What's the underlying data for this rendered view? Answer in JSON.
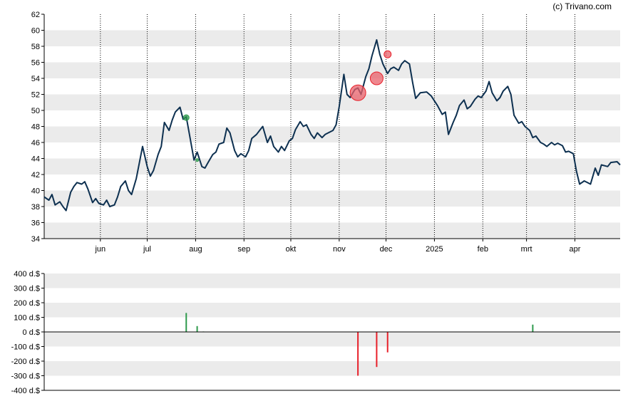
{
  "credit": "(c) Trivano.com",
  "colors": {
    "line": "#0d3050",
    "band": "#ebebeb",
    "buy": "#2e9a4c",
    "sell": "#e8202a",
    "sell_fill": "#e8606a"
  },
  "chart_data": [
    {
      "type": "line",
      "title": "",
      "xlabel": "",
      "ylabel": "",
      "ylim": [
        34,
        62
      ],
      "yticks": [
        34,
        36,
        38,
        40,
        42,
        44,
        46,
        48,
        50,
        52,
        54,
        56,
        58,
        60,
        62
      ],
      "grid": "horizontal bands, vertical dotted month lines",
      "x_tick_labels": [
        "jun",
        "jul",
        "aug",
        "sep",
        "okt",
        "nov",
        "dec",
        "2025",
        "feb",
        "mrt",
        "apr"
      ],
      "x_tick_dates": [
        "2024-06-01",
        "2024-07-01",
        "2024-08-01",
        "2024-09-01",
        "2024-10-01",
        "2024-11-01",
        "2024-12-01",
        "2025-01-01",
        "2025-02-01",
        "2025-03-01",
        "2025-04-01"
      ],
      "x_range": [
        "2024-04-26",
        "2025-04-30"
      ],
      "series": [
        {
          "dates": [
            "2024-04-26",
            "2024-04-29",
            "2024-05-01",
            "2024-05-03",
            "2024-05-06",
            "2024-05-08",
            "2024-05-10",
            "2024-05-13",
            "2024-05-15",
            "2024-05-17",
            "2024-05-20",
            "2024-05-22",
            "2024-05-24",
            "2024-05-27",
            "2024-05-29",
            "2024-05-31",
            "2024-06-03",
            "2024-06-05",
            "2024-06-07",
            "2024-06-10",
            "2024-06-12",
            "2024-06-14",
            "2024-06-17",
            "2024-06-19",
            "2024-06-21",
            "2024-06-24",
            "2024-06-26",
            "2024-06-28",
            "2024-07-01",
            "2024-07-03",
            "2024-07-05",
            "2024-07-08",
            "2024-07-10",
            "2024-07-12",
            "2024-07-15",
            "2024-07-17",
            "2024-07-19",
            "2024-07-22",
            "2024-07-24",
            "2024-07-26",
            "2024-07-29",
            "2024-07-31",
            "2024-08-02",
            "2024-08-05",
            "2024-08-07",
            "2024-08-09",
            "2024-08-12",
            "2024-08-14",
            "2024-08-16",
            "2024-08-19",
            "2024-08-21",
            "2024-08-23",
            "2024-08-26",
            "2024-08-28",
            "2024-08-30",
            "2024-09-02",
            "2024-09-04",
            "2024-09-06",
            "2024-09-09",
            "2024-09-11",
            "2024-09-13",
            "2024-09-16",
            "2024-09-18",
            "2024-09-20",
            "2024-09-23",
            "2024-09-25",
            "2024-09-27",
            "2024-09-30",
            "2024-10-02",
            "2024-10-04",
            "2024-10-07",
            "2024-10-09",
            "2024-10-11",
            "2024-10-14",
            "2024-10-16",
            "2024-10-18",
            "2024-10-21",
            "2024-10-23",
            "2024-10-25",
            "2024-10-28",
            "2024-10-30",
            "2024-11-01",
            "2024-11-04",
            "2024-11-06",
            "2024-11-08",
            "2024-11-11",
            "2024-11-13",
            "2024-11-15",
            "2024-11-18",
            "2024-11-20",
            "2024-11-22",
            "2024-11-25",
            "2024-11-27",
            "2024-11-29",
            "2024-12-02",
            "2024-12-04",
            "2024-12-06",
            "2024-12-09",
            "2024-12-11",
            "2024-12-13",
            "2024-12-16",
            "2024-12-18",
            "2024-12-20",
            "2024-12-23",
            "2024-12-27",
            "2024-12-30",
            "2025-01-03",
            "2025-01-06",
            "2025-01-08",
            "2025-01-10",
            "2025-01-13",
            "2025-01-15",
            "2025-01-17",
            "2025-01-20",
            "2025-01-22",
            "2025-01-24",
            "2025-01-27",
            "2025-01-29",
            "2025-01-31",
            "2025-02-03",
            "2025-02-05",
            "2025-02-07",
            "2025-02-10",
            "2025-02-12",
            "2025-02-14",
            "2025-02-17",
            "2025-02-19",
            "2025-02-21",
            "2025-02-24",
            "2025-02-26",
            "2025-02-28",
            "2025-03-03",
            "2025-03-05",
            "2025-03-07",
            "2025-03-10",
            "2025-03-12",
            "2025-03-14",
            "2025-03-17",
            "2025-03-19",
            "2025-03-21",
            "2025-03-24",
            "2025-03-26",
            "2025-03-28",
            "2025-03-31",
            "2025-04-02",
            "2025-04-04",
            "2025-04-07",
            "2025-04-09",
            "2025-04-11",
            "2025-04-14",
            "2025-04-16",
            "2025-04-18",
            "2025-04-22",
            "2025-04-24",
            "2025-04-28",
            "2025-04-30"
          ],
          "values": [
            39.2,
            38.8,
            39.5,
            38.2,
            38.6,
            38.0,
            37.5,
            39.8,
            40.5,
            41.0,
            40.8,
            41.1,
            40.2,
            38.5,
            39.0,
            38.4,
            38.2,
            38.8,
            38.0,
            38.2,
            39.2,
            40.5,
            41.2,
            40.0,
            39.5,
            41.5,
            43.5,
            45.5,
            43.0,
            41.8,
            42.5,
            44.5,
            45.5,
            48.5,
            47.5,
            48.8,
            49.8,
            50.4,
            48.9,
            49.2,
            46.0,
            43.8,
            44.8,
            43.0,
            42.8,
            43.5,
            44.5,
            44.8,
            45.8,
            46.0,
            47.8,
            47.2,
            45.0,
            44.2,
            44.6,
            44.2,
            45.0,
            46.5,
            47.0,
            47.5,
            48.0,
            46.0,
            46.8,
            45.5,
            44.8,
            45.5,
            45.0,
            46.2,
            46.5,
            47.6,
            48.6,
            48.0,
            48.2,
            47.0,
            46.5,
            47.2,
            46.6,
            47.0,
            47.2,
            47.5,
            48.2,
            50.5,
            54.5,
            52.0,
            51.6,
            52.6,
            52.8,
            52.0,
            54.2,
            55.2,
            56.8,
            58.8,
            57.0,
            55.8,
            54.6,
            55.2,
            55.4,
            55.0,
            55.8,
            56.2,
            55.8,
            53.5,
            51.5,
            52.2,
            52.3,
            51.8,
            50.6,
            49.5,
            49.8,
            47.0,
            48.5,
            49.4,
            50.6,
            51.3,
            50.2,
            50.5,
            51.4,
            51.8,
            51.6,
            52.4,
            53.6,
            52.2,
            51.2,
            51.6,
            52.4,
            53.0,
            52.0,
            49.4,
            48.4,
            48.6,
            48.0,
            47.5,
            46.6,
            46.8,
            46.0,
            45.8,
            45.5,
            46.0,
            45.7,
            45.9,
            45.6,
            44.8,
            44.9,
            44.6,
            42.4,
            40.8,
            41.2,
            41.0,
            40.8,
            42.8,
            41.9,
            43.2,
            43.0,
            43.5,
            43.6,
            43.2
          ]
        }
      ],
      "markers": [
        {
          "date": "2024-07-26",
          "value": 49.1,
          "kind": "buy",
          "size": 4
        },
        {
          "date": "2024-08-02",
          "value": 43.8,
          "kind": "buy",
          "size": 2
        },
        {
          "date": "2024-11-13",
          "value": 52.2,
          "kind": "sell",
          "size": 11
        },
        {
          "date": "2024-11-25",
          "value": 54.0,
          "kind": "sell",
          "size": 9
        },
        {
          "date": "2024-12-02",
          "value": 57.0,
          "kind": "sell",
          "size": 5
        }
      ]
    },
    {
      "type": "bar",
      "title": "",
      "ylim": [
        -400,
        400
      ],
      "ytick_labels": [
        "400 d.$",
        "300 d.$",
        "200 d.$",
        "100 d.$",
        "0 d.$",
        "-100 d.$",
        "-200 d.$",
        "-300 d.$",
        "-400 d.$"
      ],
      "yticks": [
        400,
        300,
        200,
        100,
        0,
        -100,
        -200,
        -300,
        -400
      ],
      "bars": [
        {
          "date": "2024-07-26",
          "value": 130,
          "kind": "buy"
        },
        {
          "date": "2024-08-02",
          "value": 40,
          "kind": "buy"
        },
        {
          "date": "2024-08-06",
          "value": 3,
          "kind": "buy"
        },
        {
          "date": "2024-11-13",
          "value": -300,
          "kind": "sell"
        },
        {
          "date": "2024-11-25",
          "value": -240,
          "kind": "sell"
        },
        {
          "date": "2024-12-02",
          "value": -140,
          "kind": "sell"
        },
        {
          "date": "2025-03-05",
          "value": 50,
          "kind": "buy"
        }
      ]
    }
  ]
}
